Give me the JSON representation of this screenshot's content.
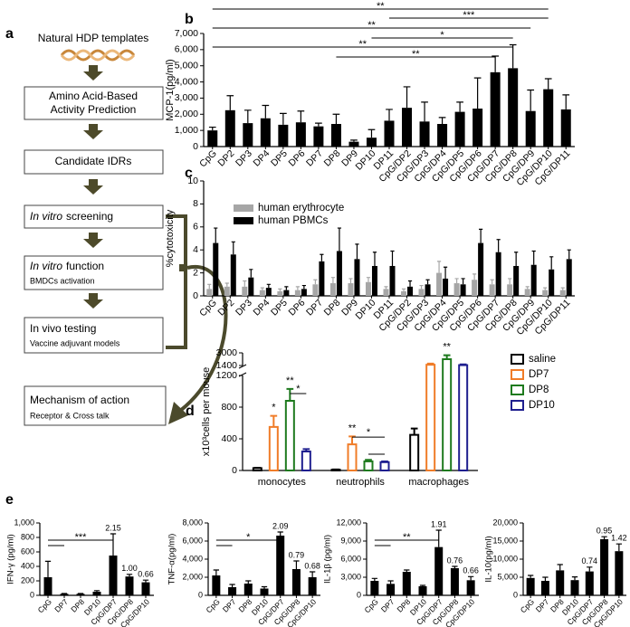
{
  "diagram": {
    "panel_label": "a",
    "template": "Natural HDP templates",
    "steps": [
      {
        "lines": [
          "Amino Acid-Based",
          "Activity Prediction"
        ]
      },
      {
        "lines": [
          "Candidate IDRs"
        ]
      },
      {
        "title_italic": "In vitro",
        "title": "screening"
      },
      {
        "title_italic": "In vitro",
        "title": "function",
        "subtitle": "BMDCs activation"
      },
      {
        "title": "In vivo testing",
        "subtitle": "Vaccine adjuvant models"
      }
    ],
    "mechanism": {
      "title": "Mechanism of action",
      "subtitle": "Receptor & Cross talk"
    }
  },
  "chart_data": [
    {
      "type": "bar",
      "panel_label": "b",
      "ylabel": "MCP-1(pg/ml)",
      "categories": [
        "CpG",
        "DP2",
        "DP3",
        "DP4",
        "DP5",
        "DP6",
        "DP7",
        "DP8",
        "DP9",
        "DP10",
        "DP11",
        "CpG/DP2",
        "CpG/DP3",
        "CpG/DP4",
        "CpG/DP5",
        "CpG/DP6",
        "CpG/DP7",
        "CpG/DP8",
        "CpG/DP9",
        "CpG/DP10",
        "CpG/DP11"
      ],
      "series": [
        {
          "color": "#000000",
          "values": [
            1000,
            2250,
            1450,
            1750,
            1350,
            1500,
            1250,
            1400,
            300,
            550,
            1600,
            2400,
            1550,
            1400,
            2150,
            2350,
            4600,
            4850,
            2200,
            3550,
            2300
          ],
          "errors": [
            200,
            900,
            800,
            800,
            700,
            700,
            200,
            600,
            100,
            500,
            700,
            1300,
            1200,
            400,
            600,
            1900,
            1000,
            1450,
            1300,
            650,
            900
          ]
        }
      ],
      "ylim": [
        0,
        7000
      ],
      "yticks": [
        0,
        {
          "value": 1000,
          "label": "1,000"
        },
        {
          "value": 2000,
          "label": "2,000"
        },
        {
          "value": 3000,
          "label": "3,000"
        },
        {
          "value": 4000,
          "label": "4,000"
        },
        {
          "value": 5000,
          "label": "5,000"
        },
        {
          "value": 6000,
          "label": "6,000"
        },
        {
          "value": 7000,
          "label": "7,000"
        }
      ],
      "significance": [
        {
          "text": "**",
          "from": "CpG",
          "to": "CpG/DP10"
        },
        {
          "text": "***",
          "from": "DP11",
          "to": "CpG/DP10"
        },
        {
          "text": "**",
          "from": "CpG",
          "to": "CpG/DP9"
        },
        {
          "text": "*",
          "from": "DP10",
          "to": "CpG/DP8"
        },
        {
          "text": "**",
          "from": "CpG",
          "to": "CpG/DP8"
        },
        {
          "text": "**",
          "from": "DP8",
          "to": "CpG/DP7"
        }
      ]
    },
    {
      "type": "bar",
      "panel_label": "c",
      "ylabel": "%cytotoxicity",
      "categories": [
        "CpG",
        "DP2",
        "DP3",
        "DP4",
        "DP5",
        "DP6",
        "DP7",
        "DP8",
        "DP9",
        "DP10",
        "DP11",
        "CpG/DP2",
        "CpG/DP3",
        "CpG/DP4",
        "CpG/DP5",
        "CpG/DP6",
        "CpG/DP7",
        "CpG/DP8",
        "CpG/DP9",
        "CpG/DP10",
        "CpG/DP11"
      ],
      "series": [
        {
          "name": "human erythrocyte",
          "color": "#a6a6a6",
          "values": [
            0.6,
            0.8,
            0.8,
            0.5,
            0.4,
            0.5,
            1.0,
            1.1,
            1.1,
            1.2,
            0.6,
            0.4,
            0.6,
            2.0,
            1.1,
            1.4,
            1.0,
            1.0,
            0.6,
            0.5,
            0.5
          ],
          "errors": [
            0.4,
            0.3,
            0.5,
            0.2,
            0.2,
            0.3,
            0.4,
            0.5,
            0.4,
            0.4,
            0.2,
            0.2,
            0.3,
            1.0,
            0.4,
            0.5,
            0.4,
            0.5,
            0.2,
            0.2,
            0.2
          ]
        },
        {
          "name": "human PBMCs",
          "color": "#000000",
          "values": [
            4.6,
            3.6,
            1.6,
            0.7,
            0.5,
            0.6,
            3.0,
            3.9,
            3.2,
            2.6,
            2.6,
            0.8,
            1.0,
            1.5,
            1.0,
            4.6,
            3.8,
            2.6,
            2.7,
            2.3,
            3.2
          ],
          "errors": [
            1.3,
            1.1,
            0.7,
            0.3,
            0.3,
            0.3,
            0.6,
            2.0,
            1.3,
            1.2,
            1.3,
            0.5,
            0.4,
            1.0,
            0.5,
            1.2,
            1.1,
            1.2,
            1.2,
            1.1,
            0.8
          ]
        }
      ],
      "ylim": [
        0,
        10
      ],
      "yticks": [
        0,
        2,
        4,
        6,
        8,
        10
      ],
      "legend": "upper left"
    },
    {
      "type": "bar",
      "panel_label": "d",
      "ylabel": "x10³cells per mouse",
      "bar_style": "outline",
      "categories": [
        "monocytes",
        "neutrophils",
        "macrophages"
      ],
      "series": [
        {
          "name": "saline",
          "color": "#000000",
          "values": [
            30,
            10,
            450
          ],
          "errors": [
            5,
            3,
            80
          ]
        },
        {
          "name": "DP7",
          "color": "#f07c28",
          "values": [
            550,
            330,
            1500
          ],
          "errors": [
            140,
            100,
            150
          ]
        },
        {
          "name": "DP8",
          "color": "#1e7a1e",
          "values": [
            880,
            115,
            2200
          ],
          "errors": [
            150,
            20,
            500
          ]
        },
        {
          "name": "DP10",
          "color": "#1f1f8f",
          "values": [
            240,
            105,
            1450
          ],
          "errors": [
            30,
            10,
            100
          ]
        }
      ],
      "ylim": [
        0,
        3000
      ],
      "ybreak": [
        1200,
        1400
      ],
      "yticks": [
        0,
        400,
        800,
        1200,
        1400,
        3000
      ],
      "legend": "right",
      "star_marks": [
        {
          "text": "*",
          "category": "monocytes",
          "series": "DP7"
        },
        {
          "text": "**",
          "category": "monocytes",
          "series": "DP8"
        },
        {
          "text": "**",
          "category": "neutrophils",
          "series": "DP7"
        },
        {
          "text": "**",
          "category": "macrophages",
          "series": "DP8"
        }
      ],
      "brackets": [
        {
          "text": "*",
          "category": "monocytes",
          "from": "DP8",
          "to": "DP10"
        },
        {
          "text": "*",
          "category": "neutrophils",
          "from": "DP7",
          "to": "DP10"
        },
        {
          "category": "neutrophils",
          "from": "DP8",
          "to": "DP10"
        }
      ]
    },
    {
      "type": "bar",
      "panel_label": "e",
      "ylabel": "IFN-γ (pg/ml)",
      "categories": [
        "CpG",
        "DP7",
        "DP8",
        "DP10",
        "CpG/DP7",
        "CpG/DP8",
        "CpG/DP10"
      ],
      "series": [
        {
          "color": "#000000",
          "values": [
            250,
            20,
            20,
            50,
            550,
            260,
            180
          ],
          "errors": [
            220,
            5,
            5,
            15,
            300,
            30,
            30
          ]
        }
      ],
      "ratio_labels": [
        null,
        null,
        null,
        null,
        "2.15",
        "1.00",
        "0.66"
      ],
      "ylim": [
        0,
        1000
      ],
      "yticks": [
        0,
        200,
        400,
        600,
        800,
        {
          "value": 1000,
          "label": "1,000"
        }
      ],
      "significance": [
        {
          "text": "***",
          "from": "CpG",
          "to": "CpG/DP7"
        },
        {
          "from": "CpG",
          "to": "DP7"
        }
      ]
    },
    {
      "type": "bar",
      "ylabel": "TNF-α(pg/ml)",
      "categories": [
        "CpG",
        "DP7",
        "DP8",
        "DP10",
        "CpG/DP7",
        "CpG/DP8",
        "CpG/DP10"
      ],
      "series": [
        {
          "color": "#000000",
          "values": [
            2200,
            900,
            1300,
            750,
            6600,
            2900,
            2000
          ],
          "errors": [
            600,
            300,
            300,
            200,
            400,
            900,
            600
          ]
        }
      ],
      "ratio_labels": [
        null,
        null,
        null,
        null,
        "2.09",
        "0.79",
        "0.68"
      ],
      "ylim": [
        0,
        8000
      ],
      "yticks": [
        0,
        {
          "value": 2000,
          "label": "2,000"
        },
        {
          "value": 4000,
          "label": "4,000"
        },
        {
          "value": 6000,
          "label": "6,000"
        },
        {
          "value": 8000,
          "label": "8,000"
        }
      ],
      "significance": [
        {
          "text": "*",
          "from": "CpG",
          "to": "CpG/DP7"
        },
        {
          "from": "CpG",
          "to": "DP7"
        }
      ]
    },
    {
      "type": "bar",
      "ylabel": "IL-1β (pg/ml)",
      "categories": [
        "CpG",
        "DP7",
        "DP8",
        "DP10",
        "CpG/DP7",
        "CpG/DP8",
        "CpG/DP10"
      ],
      "series": [
        {
          "color": "#000000",
          "values": [
            2400,
            1900,
            3900,
            1500,
            8000,
            4500,
            2500
          ],
          "errors": [
            400,
            500,
            300,
            150,
            2800,
            300,
            600
          ]
        }
      ],
      "ratio_labels": [
        null,
        null,
        null,
        null,
        "1.91",
        "0.76",
        "0.66"
      ],
      "ylim": [
        0,
        12000
      ],
      "yticks": [
        0,
        {
          "value": 3000,
          "label": "3,000"
        },
        {
          "value": 6000,
          "label": "6,000"
        },
        {
          "value": 9000,
          "label": "9,000"
        },
        {
          "value": 12000,
          "label": "12,000"
        }
      ],
      "significance": [
        {
          "text": "**",
          "from": "CpG",
          "to": "CpG/DP7"
        },
        {
          "from": "CpG",
          "to": "DP7"
        }
      ]
    },
    {
      "type": "bar",
      "ylabel": "IL-10(pg/ml)",
      "categories": [
        "CpG",
        "DP7",
        "DP8",
        "DP10",
        "CpG/DP7",
        "CpG/DP8",
        "CpG/DP10"
      ],
      "series": [
        {
          "color": "#000000",
          "values": [
            4800,
            4000,
            6900,
            4200,
            6600,
            15500,
            12200
          ],
          "errors": [
            700,
            1000,
            1600,
            900,
            1200,
            700,
            2000
          ]
        }
      ],
      "ratio_labels": [
        null,
        null,
        null,
        null,
        "0.74",
        "0.95",
        "1.42"
      ],
      "ylim": [
        0,
        20000
      ],
      "yticks": [
        0,
        {
          "value": 5000,
          "label": "5,000"
        },
        {
          "value": 10000,
          "label": "10,000"
        },
        {
          "value": 15000,
          "label": "15,000"
        },
        {
          "value": 20000,
          "label": "20,000"
        }
      ]
    }
  ]
}
